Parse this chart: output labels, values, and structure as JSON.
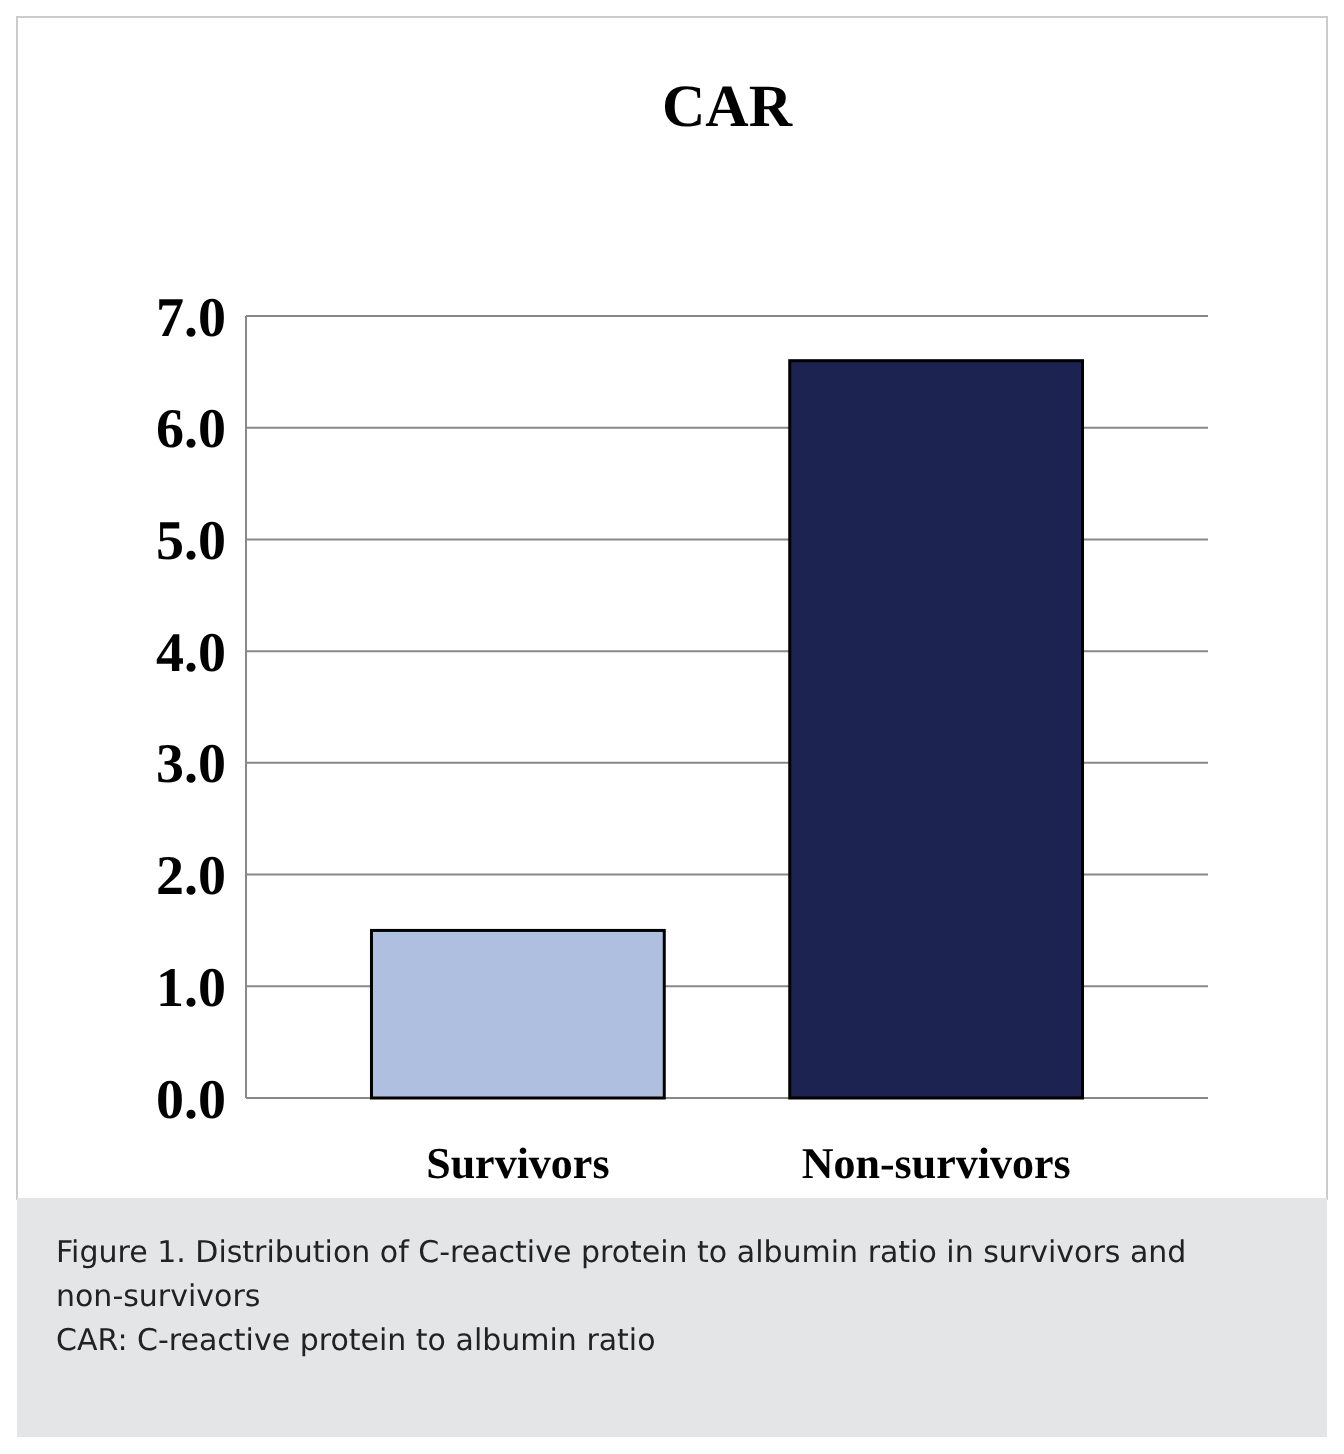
{
  "chart_data": {
    "type": "bar",
    "title": "CAR",
    "categories": [
      "Survivors",
      "Non-survivors"
    ],
    "values": [
      1.5,
      6.6
    ],
    "colors": [
      "#aebfe0",
      "#1c2350"
    ],
    "ylim": [
      0,
      7
    ],
    "yticks": [
      {
        "value": 0,
        "label": "0.0"
      },
      {
        "value": 1,
        "label": "1.0"
      },
      {
        "value": 2,
        "label": "2.0"
      },
      {
        "value": 3,
        "label": "3.0"
      },
      {
        "value": 4,
        "label": "4.0"
      },
      {
        "value": 5,
        "label": "5.0"
      },
      {
        "value": 6,
        "label": "6.0"
      },
      {
        "value": 7,
        "label": "7.0"
      }
    ],
    "grid": true,
    "annotations": [
      "Figure 1. Distribution of C-reactive protein to albumin ratio in survivors and non-survivors",
      "CAR: C-reactive protein to albumin ratio"
    ]
  }
}
